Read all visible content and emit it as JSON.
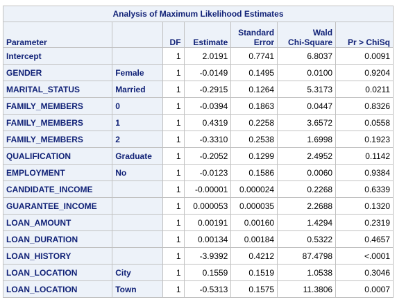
{
  "title": "Analysis of Maximum Likelihood Estimates",
  "columns": {
    "parameter": "Parameter",
    "level": "",
    "df": "DF",
    "estimate": "Estimate",
    "std_error": [
      "Standard",
      "Error"
    ],
    "wald_chi_square": [
      "Wald",
      "Chi-Square"
    ],
    "pr_chisq": "Pr > ChiSq"
  },
  "rows": [
    {
      "parameter": "Intercept",
      "level": "",
      "df": "1",
      "estimate": "2.0191",
      "std_error": "0.7741",
      "wald_chi_square": "6.8037",
      "pr_chisq": "0.0091"
    },
    {
      "parameter": "GENDER",
      "level": "Female",
      "df": "1",
      "estimate": "-0.0149",
      "std_error": "0.1495",
      "wald_chi_square": "0.0100",
      "pr_chisq": "0.9204"
    },
    {
      "parameter": "MARITAL_STATUS",
      "level": "Married",
      "df": "1",
      "estimate": "-0.2915",
      "std_error": "0.1264",
      "wald_chi_square": "5.3173",
      "pr_chisq": "0.0211"
    },
    {
      "parameter": "FAMILY_MEMBERS",
      "level": "0",
      "df": "1",
      "estimate": "-0.0394",
      "std_error": "0.1863",
      "wald_chi_square": "0.0447",
      "pr_chisq": "0.8326"
    },
    {
      "parameter": "FAMILY_MEMBERS",
      "level": "1",
      "df": "1",
      "estimate": "0.4319",
      "std_error": "0.2258",
      "wald_chi_square": "3.6572",
      "pr_chisq": "0.0558"
    },
    {
      "parameter": "FAMILY_MEMBERS",
      "level": "2",
      "df": "1",
      "estimate": "-0.3310",
      "std_error": "0.2538",
      "wald_chi_square": "1.6998",
      "pr_chisq": "0.1923"
    },
    {
      "parameter": "QUALIFICATION",
      "level": "Graduate",
      "df": "1",
      "estimate": "-0.2052",
      "std_error": "0.1299",
      "wald_chi_square": "2.4952",
      "pr_chisq": "0.1142"
    },
    {
      "parameter": "EMPLOYMENT",
      "level": "No",
      "df": "1",
      "estimate": "-0.0123",
      "std_error": "0.1586",
      "wald_chi_square": "0.0060",
      "pr_chisq": "0.9384"
    },
    {
      "parameter": "CANDIDATE_INCOME",
      "level": "",
      "df": "1",
      "estimate": "-0.00001",
      "std_error": "0.000024",
      "wald_chi_square": "0.2268",
      "pr_chisq": "0.6339"
    },
    {
      "parameter": "GUARANTEE_INCOME",
      "level": "",
      "df": "1",
      "estimate": "0.000053",
      "std_error": "0.000035",
      "wald_chi_square": "2.2688",
      "pr_chisq": "0.1320"
    },
    {
      "parameter": "LOAN_AMOUNT",
      "level": "",
      "df": "1",
      "estimate": "0.00191",
      "std_error": "0.00160",
      "wald_chi_square": "1.4294",
      "pr_chisq": "0.2319"
    },
    {
      "parameter": "LOAN_DURATION",
      "level": "",
      "df": "1",
      "estimate": "0.00134",
      "std_error": "0.00184",
      "wald_chi_square": "0.5322",
      "pr_chisq": "0.4657"
    },
    {
      "parameter": "LOAN_HISTORY",
      "level": "",
      "df": "1",
      "estimate": "-3.9392",
      "std_error": "0.4212",
      "wald_chi_square": "87.4798",
      "pr_chisq": "<.0001"
    },
    {
      "parameter": "LOAN_LOCATION",
      "level": "City",
      "df": "1",
      "estimate": "0.1559",
      "std_error": "0.1519",
      "wald_chi_square": "1.0538",
      "pr_chisq": "0.3046"
    },
    {
      "parameter": "LOAN_LOCATION",
      "level": "Town",
      "df": "1",
      "estimate": "-0.5313",
      "std_error": "0.1575",
      "wald_chi_square": "11.3806",
      "pr_chisq": "0.0007"
    }
  ],
  "colors": {
    "header_background": "#edf2f9",
    "header_text": "#112277",
    "grid_line": "#c1c1c1",
    "cell_background": "#ffffff"
  }
}
